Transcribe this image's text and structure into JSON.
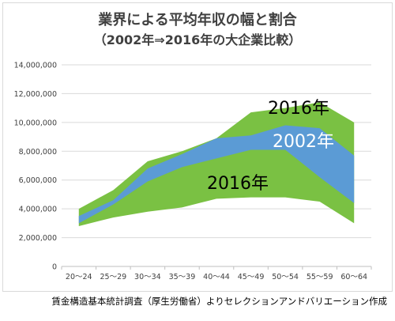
{
  "chart_data": {
    "type": "area",
    "title": [
      "業界による平均年収の幅と割合",
      "（2002年⇒2016年の大企業比較）"
    ],
    "xlabel": "",
    "ylabel": "",
    "categories": [
      "20～24",
      "25～29",
      "30～34",
      "35～39",
      "40～44",
      "45～49",
      "50～54",
      "55～59",
      "60～64"
    ],
    "ylim": [
      0,
      14000000
    ],
    "yticks": [
      "0",
      "2,000,000",
      "4,000,000",
      "6,000,000",
      "8,000,000",
      "10,000,000",
      "12,000,000",
      "14,000,000"
    ],
    "grid": true,
    "series": [
      {
        "name": "2016年",
        "color": "#7ac143",
        "upper": [
          4000000,
          5300000,
          7300000,
          8000000,
          8900000,
          10700000,
          11000000,
          11400000,
          10000000
        ],
        "lower": [
          2800000,
          3400000,
          3800000,
          4100000,
          4700000,
          4800000,
          4800000,
          4500000,
          3000000
        ]
      },
      {
        "name": "2002年",
        "color": "#5b9bd5",
        "upper": [
          3500000,
          4600000,
          6800000,
          7800000,
          8900000,
          9100000,
          9800000,
          9600000,
          7700000
        ],
        "lower": [
          3000000,
          4300000,
          5900000,
          6900000,
          7500000,
          8100000,
          8100000,
          6200000,
          4400000
        ]
      }
    ],
    "annotations": [
      "2016年",
      "2002年",
      "2016年"
    ]
  },
  "source": "賃金構造基本統計調査（厚生労働省）よりセレクションアンドバリエーション作成"
}
